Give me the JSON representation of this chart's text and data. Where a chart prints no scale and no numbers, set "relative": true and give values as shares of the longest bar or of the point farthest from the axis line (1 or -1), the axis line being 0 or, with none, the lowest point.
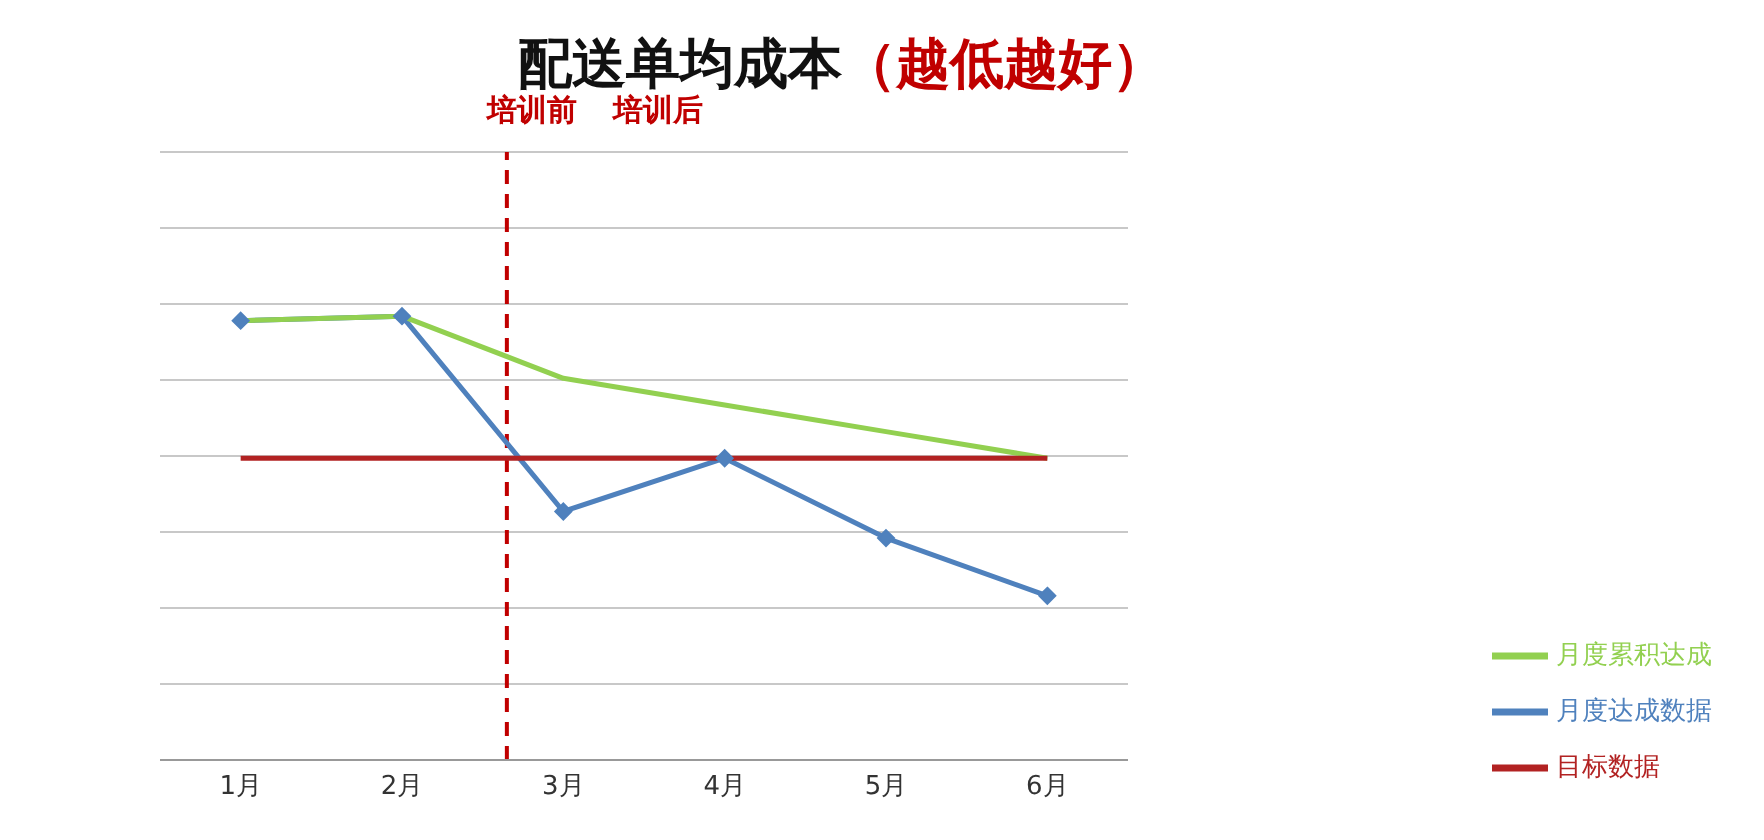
{
  "chart_data": {
    "type": "line",
    "title": "配送单均成本",
    "subtitle": "（越低越好）",
    "relative": true,
    "x": [
      1,
      2,
      3,
      4,
      5,
      6
    ],
    "xlim": [
      0.5,
      6.5
    ],
    "xticks": [
      {
        "value": 1,
        "label": "1月"
      },
      {
        "value": 2,
        "label": "2月"
      },
      {
        "value": 3,
        "label": "3月"
      },
      {
        "value": 4,
        "label": "4月"
      },
      {
        "value": 5,
        "label": "5月"
      },
      {
        "value": 6,
        "label": "6月"
      }
    ],
    "series": [
      {
        "name": "月度达成数据",
        "color": "#4f81bd",
        "marker": "diamond",
        "values": [
          0.99,
          1,
          0.56,
          0.68,
          0.5,
          0.37
        ]
      },
      {
        "name": "月度累积达成",
        "color": "#92d050",
        "marker": "none",
        "values": [
          0.99,
          1,
          0.86,
          0.8,
          0.74,
          0.68
        ]
      },
      {
        "name": "目标数据",
        "color": "#b22222",
        "marker": "none",
        "values": [
          0.68,
          0.68,
          0.68,
          0.68,
          0.68,
          0.68
        ]
      }
    ],
    "ref_lines": [
      {
        "axis": "x",
        "value": 2.65,
        "color": "#c00000",
        "line_style": "dashed"
      }
    ],
    "annotations": [
      "培训前",
      "培训后"
    ],
    "grid": "y",
    "legend": "bottom right"
  }
}
